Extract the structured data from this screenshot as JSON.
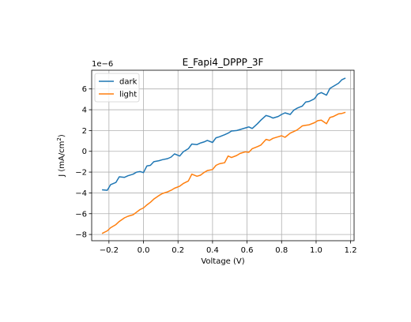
{
  "chart_data": {
    "type": "line",
    "title": "E_Fapi4_DPPP_3F",
    "xlabel": "Voltage (V)",
    "ylabel": "J (mA/cm",
    "ylabel_sup": "2",
    "ylabel_tail": ")",
    "offset_text": "1e−6",
    "xlim": [
      -0.3,
      1.22
    ],
    "ylim": [
      -8.6,
      7.8
    ],
    "x_ticks": [
      -0.2,
      0.0,
      0.2,
      0.4,
      0.6,
      0.8,
      1.0,
      1.2
    ],
    "x_tick_labels": [
      "−0.2",
      "0.0",
      "0.2",
      "0.4",
      "0.6",
      "0.8",
      "1.0",
      "1.2"
    ],
    "y_ticks": [
      -8,
      -6,
      -4,
      -2,
      0,
      2,
      4,
      6
    ],
    "y_tick_labels": [
      "−8",
      "−6",
      "−4",
      "−2",
      "0",
      "2",
      "4",
      "6"
    ],
    "grid": true,
    "legend_position": "upper-left",
    "series": [
      {
        "name": "dark",
        "color": "#1f77b4",
        "x": [
          -0.24,
          -0.21,
          -0.19,
          -0.16,
          -0.14,
          -0.11,
          -0.09,
          -0.06,
          -0.04,
          -0.02,
          0.0,
          0.02,
          0.04,
          0.06,
          0.09,
          0.11,
          0.14,
          0.16,
          0.18,
          0.21,
          0.23,
          0.26,
          0.28,
          0.31,
          0.33,
          0.35,
          0.37,
          0.4,
          0.42,
          0.44,
          0.47,
          0.49,
          0.51,
          0.54,
          0.56,
          0.59,
          0.61,
          0.63,
          0.66,
          0.68,
          0.71,
          0.73,
          0.75,
          0.78,
          0.8,
          0.82,
          0.85,
          0.87,
          0.89,
          0.92,
          0.94,
          0.96,
          0.99,
          1.01,
          1.03,
          1.06,
          1.08,
          1.1,
          1.13,
          1.15,
          1.17
        ],
        "y": [
          -3.7,
          -3.75,
          -3.2,
          -3.0,
          -2.45,
          -2.5,
          -2.35,
          -2.2,
          -2.0,
          -1.95,
          -2.05,
          -1.4,
          -1.35,
          -1.0,
          -0.9,
          -0.8,
          -0.7,
          -0.55,
          -0.25,
          -0.45,
          -0.05,
          0.25,
          0.7,
          0.65,
          0.8,
          0.9,
          1.05,
          0.85,
          1.3,
          1.4,
          1.6,
          1.75,
          1.95,
          2.0,
          2.1,
          2.25,
          2.35,
          2.2,
          2.65,
          3.0,
          3.45,
          3.35,
          3.2,
          3.35,
          3.55,
          3.7,
          3.55,
          3.95,
          4.15,
          4.35,
          4.75,
          4.8,
          5.05,
          5.5,
          5.65,
          5.4,
          6.05,
          6.25,
          6.55,
          6.9,
          7.05
        ]
      },
      {
        "name": "light",
        "color": "#ff7f0e",
        "x": [
          -0.24,
          -0.21,
          -0.19,
          -0.16,
          -0.14,
          -0.11,
          -0.09,
          -0.06,
          -0.04,
          -0.02,
          0.0,
          0.02,
          0.04,
          0.06,
          0.09,
          0.11,
          0.14,
          0.16,
          0.18,
          0.21,
          0.23,
          0.26,
          0.28,
          0.31,
          0.33,
          0.35,
          0.37,
          0.4,
          0.42,
          0.44,
          0.47,
          0.49,
          0.51,
          0.54,
          0.56,
          0.59,
          0.61,
          0.63,
          0.66,
          0.68,
          0.71,
          0.73,
          0.75,
          0.78,
          0.8,
          0.82,
          0.85,
          0.87,
          0.89,
          0.92,
          0.94,
          0.96,
          0.99,
          1.01,
          1.03,
          1.06,
          1.08,
          1.1,
          1.13,
          1.15,
          1.17
        ],
        "y": [
          -7.9,
          -7.65,
          -7.35,
          -7.05,
          -6.75,
          -6.4,
          -6.25,
          -6.1,
          -5.85,
          -5.6,
          -5.45,
          -5.15,
          -4.9,
          -4.6,
          -4.25,
          -4.05,
          -3.9,
          -3.75,
          -3.55,
          -3.35,
          -3.1,
          -2.85,
          -2.2,
          -2.4,
          -2.3,
          -2.05,
          -1.85,
          -1.75,
          -1.35,
          -1.2,
          -1.1,
          -0.45,
          -0.6,
          -0.4,
          -0.2,
          -0.05,
          -0.1,
          0.25,
          0.45,
          0.6,
          1.15,
          1.05,
          1.25,
          1.4,
          1.5,
          1.35,
          1.75,
          1.9,
          2.05,
          2.45,
          2.5,
          2.55,
          2.75,
          2.95,
          3.0,
          2.65,
          3.25,
          3.35,
          3.6,
          3.65,
          3.75
        ]
      }
    ]
  }
}
